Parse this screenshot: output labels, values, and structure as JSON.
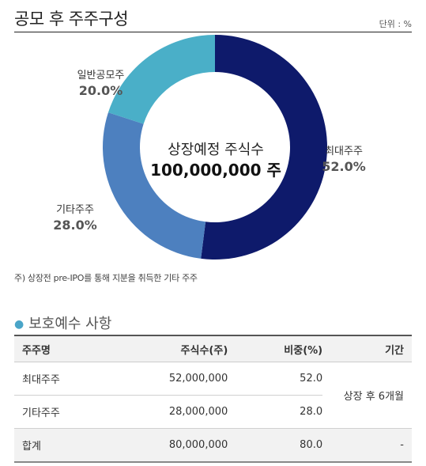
{
  "header": {
    "title": "공모 후 주주구성",
    "unit": "단위 : %"
  },
  "chart_data": {
    "type": "pie",
    "donut": true,
    "center_text": [
      "상장예정 주식수",
      "100,000,000 주"
    ],
    "slices": [
      {
        "name": "최대주주",
        "value": 52.0,
        "label": "52.0%",
        "color": "#0e1a6b"
      },
      {
        "name": "기타주주",
        "value": 28.0,
        "label": "28.0%",
        "color": "#4d80bf"
      },
      {
        "name": "일반공모주",
        "value": 20.0,
        "label": "20.0%",
        "color": "#4aafc8"
      }
    ]
  },
  "note": "주) 상장전 pre-IPO를 통해 지분을 취득한 기타 주주",
  "lockup": {
    "title": "보호예수 사항",
    "columns": [
      "주주명",
      "주식수(주)",
      "비중(%)",
      "기간"
    ],
    "rows": [
      {
        "name": "최대주주",
        "shares": "52,000,000",
        "ratio": "52.0"
      },
      {
        "name": "기타주주",
        "shares": "28,000,000",
        "ratio": "28.0"
      }
    ],
    "period_merged": "상장 후 6개월",
    "total": {
      "name": "합계",
      "shares": "80,000,000",
      "ratio": "80.0",
      "period": "-"
    }
  }
}
